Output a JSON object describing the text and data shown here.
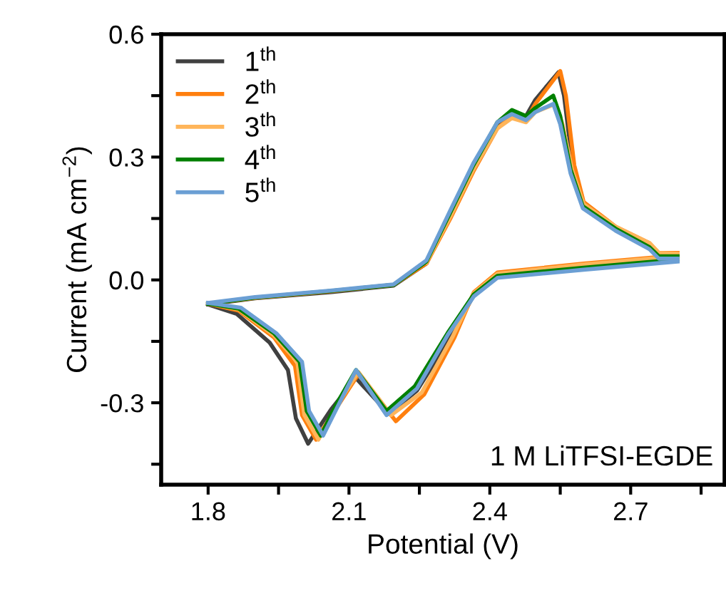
{
  "chart_data": {
    "type": "line",
    "xlabel": "Potential (V)",
    "ylabel": "Current (mA cm$^{−2}$)",
    "xlim": [
      1.7,
      2.9
    ],
    "ylim": [
      -0.5,
      0.6
    ],
    "xticks": [
      1.8,
      {
        "value": 1.95,
        "label": null
      },
      2.1,
      {
        "value": 2.25,
        "label": null
      },
      2.4,
      {
        "value": 2.55,
        "label": null
      },
      2.7,
      {
        "value": 2.85,
        "label": null
      }
    ],
    "yticks": [
      {
        "value": -0.45,
        "label": null
      },
      -0.3,
      {
        "value": -0.15,
        "label": null
      },
      {
        "value": 0.0,
        "label": "0.0"
      },
      {
        "value": 0.15,
        "label": null
      },
      0.3,
      {
        "value": 0.45,
        "label": null
      },
      0.6
    ],
    "legend": "top left",
    "grid": false,
    "marker": "none",
    "line_style": "solid",
    "annotations": [
      "1 M LiTFSI-EGDE"
    ],
    "series": [
      {
        "name": "1$^{th}$",
        "color": "#404040",
        "x": [
          1.8,
          1.9,
          2.06,
          2.195,
          2.265,
          2.316,
          2.365,
          2.416,
          2.447,
          2.477,
          2.497,
          2.546,
          2.558,
          2.577,
          2.598
        ],
        "values": [
          -0.06,
          -0.045,
          -0.03,
          -0.014,
          0.04,
          0.16,
          0.275,
          0.38,
          0.41,
          0.4,
          0.44,
          0.507,
          0.45,
          0.275,
          0.18
        ]
      },
      {
        "color": "#404040",
        "x": [
          1.8,
          1.861,
          1.931,
          1.97,
          1.987,
          2.013,
          2.062,
          2.115,
          2.185,
          2.245,
          2.316,
          2.366,
          2.416
        ],
        "values": [
          -0.06,
          -0.083,
          -0.153,
          -0.22,
          -0.338,
          -0.4,
          -0.316,
          -0.24,
          -0.327,
          -0.27,
          -0.14,
          -0.037,
          0.01
        ]
      },
      {
        "name": "2$^{th}$",
        "color": "#ff7f0e",
        "x": [
          1.8,
          1.9,
          2.06,
          2.195,
          2.265,
          2.316,
          2.365,
          2.416,
          2.447,
          2.477,
          2.497,
          2.55,
          2.562,
          2.58,
          2.6,
          2.668,
          2.74,
          2.76,
          2.8
        ],
        "values": [
          -0.058,
          -0.044,
          -0.028,
          -0.012,
          0.04,
          0.15,
          0.265,
          0.37,
          0.4,
          0.39,
          0.43,
          0.51,
          0.45,
          0.28,
          0.19,
          0.13,
          0.09,
          0.066,
          0.066
        ]
      },
      {
        "color": "#ff7f0e",
        "x": [
          1.8,
          1.865,
          1.94,
          1.985,
          2.0,
          2.03,
          2.075,
          2.12,
          2.2,
          2.26,
          2.325,
          2.366,
          2.416,
          2.6,
          2.8
        ],
        "values": [
          -0.058,
          -0.075,
          -0.14,
          -0.21,
          -0.33,
          -0.39,
          -0.31,
          -0.23,
          -0.345,
          -0.28,
          -0.14,
          -0.03,
          0.018,
          0.04,
          0.06
        ]
      },
      {
        "name": "3$^{th}$",
        "color": "#ffb55a",
        "x": [
          2.265,
          2.316,
          2.365,
          2.416,
          2.447,
          2.477,
          2.497,
          2.54,
          2.555,
          2.575,
          2.6,
          2.668,
          2.74,
          2.76,
          2.8
        ],
        "values": [
          0.042,
          0.155,
          0.27,
          0.37,
          0.395,
          0.385,
          0.41,
          0.43,
          0.38,
          0.27,
          0.185,
          0.13,
          0.09,
          0.066,
          0.064
        ]
      },
      {
        "color": "#ffb55a",
        "x": [
          1.8,
          1.865,
          1.94,
          1.99,
          2.005,
          2.035,
          2.075,
          2.12,
          2.19,
          2.255,
          2.32,
          2.366,
          2.416,
          2.6,
          2.8
        ],
        "values": [
          -0.057,
          -0.072,
          -0.135,
          -0.2,
          -0.33,
          -0.39,
          -0.305,
          -0.225,
          -0.33,
          -0.275,
          -0.14,
          -0.032,
          0.015,
          0.038,
          0.058
        ]
      },
      {
        "name": "4$^{th}$",
        "color": "#008000",
        "x": [
          1.8,
          1.9,
          2.06,
          2.195,
          2.265,
          2.316,
          2.365,
          2.416,
          2.447,
          2.477,
          2.497,
          2.535,
          2.55,
          2.572,
          2.598,
          2.668,
          2.74,
          2.76,
          2.8
        ],
        "values": [
          -0.058,
          -0.043,
          -0.027,
          -0.012,
          0.045,
          0.165,
          0.28,
          0.385,
          0.415,
          0.4,
          0.42,
          0.45,
          0.4,
          0.27,
          0.18,
          0.125,
          0.08,
          0.058,
          0.058
        ]
      },
      {
        "color": "#008000",
        "x": [
          1.8,
          1.865,
          1.94,
          1.995,
          2.01,
          2.04,
          2.075,
          2.115,
          2.18,
          2.24,
          2.31,
          2.366,
          2.416,
          2.6,
          2.8
        ],
        "values": [
          -0.058,
          -0.07,
          -0.13,
          -0.2,
          -0.32,
          -0.38,
          -0.3,
          -0.22,
          -0.32,
          -0.26,
          -0.13,
          -0.035,
          0.01,
          0.03,
          0.05
        ]
      },
      {
        "name": "5$^{th}$",
        "color": "#6b9fd4",
        "x": [
          1.8,
          1.9,
          2.06,
          2.195,
          2.265,
          2.316,
          2.365,
          2.416,
          2.447,
          2.477,
          2.497,
          2.535,
          2.55,
          2.572,
          2.598,
          2.668,
          2.74,
          2.76,
          2.8
        ],
        "values": [
          -0.056,
          -0.042,
          -0.026,
          -0.011,
          0.048,
          0.17,
          0.285,
          0.385,
          0.405,
          0.39,
          0.41,
          0.43,
          0.38,
          0.26,
          0.175,
          0.12,
          0.075,
          0.052,
          0.052
        ]
      },
      {
        "color": "#6b9fd4",
        "x": [
          1.8,
          1.87,
          1.945,
          2.0,
          2.015,
          2.045,
          2.08,
          2.115,
          2.18,
          2.245,
          2.31,
          2.366,
          2.416,
          2.6,
          2.8
        ],
        "values": [
          -0.056,
          -0.068,
          -0.13,
          -0.2,
          -0.32,
          -0.38,
          -0.3,
          -0.22,
          -0.33,
          -0.265,
          -0.135,
          -0.04,
          0.005,
          0.025,
          0.045
        ]
      }
    ]
  }
}
